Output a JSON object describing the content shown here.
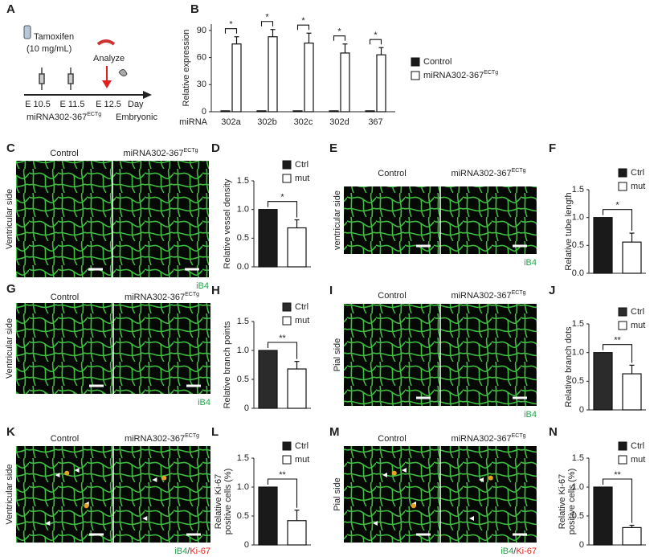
{
  "panel_a": {
    "label": "A",
    "drug": "Tamoxifen",
    "dose": "(10 mg/mL)",
    "analyze": "Analyze",
    "days": [
      "E 10.5",
      "E 11.5",
      "E 12.5"
    ],
    "unit": "Day",
    "line": "miRNA302-367",
    "line_sup": "ECTg",
    "stage": "Embryonic"
  },
  "chart_data": [
    {
      "label": "B",
      "type": "bar",
      "ylabel": [
        "Relative expression"
      ],
      "xlabel": "miRNA",
      "categories": [
        "302a",
        "302b",
        "302c",
        "302d",
        "367"
      ],
      "series": [
        {
          "name": "Control",
          "color": "#1a1a1a",
          "values": [
            1,
            1,
            1,
            1,
            1
          ]
        },
        {
          "name": "miRNA302-367",
          "name_sup": "ECTg",
          "color": "#ffffff",
          "values": [
            75,
            83,
            76,
            65,
            63
          ],
          "errors": [
            8,
            8,
            11,
            10,
            8
          ]
        }
      ],
      "annotations": [
        "*",
        "*",
        "*",
        "*",
        "*"
      ],
      "ylim": [
        0,
        97
      ],
      "yticks": [
        0,
        30,
        60,
        90
      ]
    },
    {
      "label": "D",
      "type": "bar",
      "ylabel": [
        "Relative vessel density"
      ],
      "categories": [
        null
      ],
      "series": [
        {
          "name": "Ctrl",
          "color": "#1a1a1a",
          "values": [
            1
          ]
        },
        {
          "name": "mut",
          "color": "#ffffff",
          "values": [
            0.68
          ],
          "errors": [
            0.14
          ]
        }
      ],
      "annotations": [
        "*"
      ],
      "ylim": [
        0,
        1.5
      ],
      "yticks": [
        {
          "value": 0,
          "label": "0.0"
        },
        0.5,
        {
          "value": 1,
          "label": "1.0"
        },
        1.5
      ]
    },
    {
      "label": "F",
      "type": "bar",
      "ylabel": [
        "Relative tube length"
      ],
      "categories": [
        null
      ],
      "series": [
        {
          "name": "Ctrl",
          "color": "#1a1a1a",
          "values": [
            1
          ]
        },
        {
          "name": "mut",
          "color": "#ffffff",
          "values": [
            0.56
          ],
          "errors": [
            0.16
          ]
        }
      ],
      "annotations": [
        "*"
      ],
      "ylim": [
        0,
        1.5
      ],
      "yticks": [
        {
          "value": 0,
          "label": "0.0"
        },
        0.5,
        {
          "value": 1,
          "label": "1.0"
        },
        1.5
      ]
    },
    {
      "label": "H",
      "type": "bar",
      "ylabel": [
        "Relative branch points"
      ],
      "categories": [
        null
      ],
      "series": [
        {
          "name": "Ctrl",
          "color": "#2b2b2b",
          "values": [
            1
          ]
        },
        {
          "name": "mut",
          "color": "#ffffff",
          "values": [
            0.68
          ],
          "errors": [
            0.13
          ]
        }
      ],
      "annotations": [
        "**"
      ],
      "ylim": [
        0,
        1.5
      ],
      "yticks": [
        0,
        0.5,
        {
          "value": 1,
          "label": "1.0"
        },
        1.5
      ]
    },
    {
      "label": "J",
      "type": "bar",
      "ylabel": [
        "Relative branch dots"
      ],
      "categories": [
        null
      ],
      "series": [
        {
          "name": "Ctrl",
          "color": "#2b2b2b",
          "values": [
            1
          ]
        },
        {
          "name": "mut",
          "color": "#ffffff",
          "values": [
            0.63
          ],
          "errors": [
            0.15
          ]
        }
      ],
      "annotations": [
        "**"
      ],
      "ylim": [
        0,
        1.5
      ],
      "yticks": [
        0,
        0.5,
        {
          "value": 1,
          "label": "1.0"
        },
        1.5
      ]
    },
    {
      "label": "L",
      "type": "bar",
      "ylabel": [
        "Relative Ki-67",
        "positive cells (%)"
      ],
      "categories": [
        null
      ],
      "series": [
        {
          "name": "Ctrl",
          "color": "#1a1a1a",
          "values": [
            1
          ]
        },
        {
          "name": "mut",
          "color": "#ffffff",
          "values": [
            0.42
          ],
          "errors": [
            0.18
          ]
        }
      ],
      "annotations": [
        "**"
      ],
      "ylim": [
        0,
        1.5
      ],
      "yticks": [
        0,
        0.5,
        {
          "value": 1,
          "label": "1.0"
        },
        1.5
      ]
    },
    {
      "label": "N",
      "type": "bar",
      "ylabel": [
        "Relative Ki-67",
        "positive cells (%)"
      ],
      "categories": [
        null
      ],
      "series": [
        {
          "name": "Ctrl",
          "color": "#1a1a1a",
          "values": [
            1
          ]
        },
        {
          "name": "mut",
          "color": "#ffffff",
          "values": [
            0.3
          ],
          "errors": [
            0.04
          ]
        }
      ],
      "annotations": [
        "**"
      ],
      "ylim": [
        0,
        1.5
      ],
      "yticks": [
        0,
        0.5,
        {
          "value": 1,
          "label": "1.0"
        },
        1.5
      ]
    }
  ],
  "images": [
    {
      "label": "C",
      "side": "Ventricular side",
      "columns": [
        "Control",
        "miRNA302-367"
      ],
      "column_sup": "ECTg",
      "stain": [
        {
          "text": "iB4",
          "color": "#1fa64a"
        }
      ]
    },
    {
      "label": "E",
      "side": "ventricular side",
      "columns": [
        "Control",
        "miRNA302-367"
      ],
      "column_sup": "ECTg",
      "stain": [
        {
          "text": "iB4",
          "color": "#1fa64a"
        }
      ]
    },
    {
      "label": "G",
      "side": "Ventricular side",
      "columns": [
        "Control",
        "miRNA302-367"
      ],
      "column_sup": "ECTg",
      "stain": [
        {
          "text": "iB4",
          "color": "#1fa64a"
        }
      ]
    },
    {
      "label": "I",
      "side": "Pial side",
      "columns": [
        "Control",
        "miRNA302-367"
      ],
      "column_sup": "ECTg",
      "stain": [
        {
          "text": "iB4",
          "color": "#1fa64a"
        }
      ]
    },
    {
      "label": "K",
      "side": "Ventricular side",
      "columns": [
        "Control",
        "miRNA302-367"
      ],
      "column_sup": "ECTg",
      "stain": [
        {
          "text": "iB4",
          "color": "#1fa64a"
        },
        {
          "text": "/",
          "color": "#333333"
        },
        {
          "text": "Ki-67",
          "color": "#e0231c"
        }
      ]
    },
    {
      "label": "M",
      "side": "Pial side",
      "columns": [
        "Control",
        "miRNA302-367"
      ],
      "column_sup": "ECTg",
      "stain": [
        {
          "text": "iB4",
          "color": "#1fa64a"
        },
        {
          "text": "/",
          "color": "#333333"
        },
        {
          "text": "Ki-67",
          "color": "#e0231c"
        }
      ]
    }
  ]
}
